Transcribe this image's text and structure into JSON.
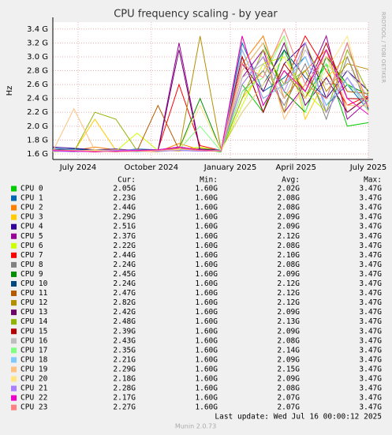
{
  "chart_data": {
    "type": "line",
    "title": "CPU frequency scaling - by year",
    "y_label": "Hz",
    "watermark": "RRDTOOL / TOBI OETIKER",
    "x": [
      0,
      25,
      50,
      75,
      100,
      125,
      150,
      175,
      200,
      225,
      250,
      275,
      300,
      325,
      350,
      375
    ],
    "xlim": [
      0,
      375
    ],
    "xticks": [
      {
        "value": 30,
        "label": "July 2024"
      },
      {
        "value": 117,
        "label": "October 2024"
      },
      {
        "value": 211,
        "label": "January 2025"
      },
      {
        "value": 289,
        "label": "April 2025"
      },
      {
        "value": 375,
        "label": "July 2025"
      }
    ],
    "ylim": [
      1.52,
      3.5
    ],
    "yticks": [
      {
        "value": 1.6,
        "label": "1.6 G"
      },
      {
        "value": 1.8,
        "label": "1.8 G"
      },
      {
        "value": 2.0,
        "label": "2.0 G"
      },
      {
        "value": 2.2,
        "label": "2.2 G"
      },
      {
        "value": 2.4,
        "label": "2.4 G"
      },
      {
        "value": 2.6,
        "label": "2.6 G"
      },
      {
        "value": 2.8,
        "label": "2.8 G"
      },
      {
        "value": 3.0,
        "label": "3.0 G"
      },
      {
        "value": 3.2,
        "label": "3.2 G"
      },
      {
        "value": 3.4,
        "label": "3.4 G"
      }
    ],
    "grid": true,
    "legend_columns": [
      "Cur:",
      "Min:",
      "Avg:",
      "Max:"
    ],
    "series": [
      {
        "name": "CPU 0",
        "color": "#00cc00",
        "values": [
          1.65,
          1.64,
          1.66,
          1.63,
          1.65,
          1.64,
          1.68,
          1.66,
          1.63,
          2.6,
          2.2,
          3.1,
          2.4,
          2.9,
          2.0,
          2.05
        ],
        "stats": [
          "2.05G",
          "1.60G",
          "2.02G",
          "3.47G"
        ]
      },
      {
        "name": "CPU 1",
        "color": "#0066b3",
        "values": [
          1.68,
          1.66,
          1.65,
          1.64,
          1.67,
          1.66,
          1.7,
          1.65,
          1.64,
          3.2,
          2.5,
          2.7,
          3.0,
          2.3,
          2.6,
          2.23
        ],
        "stats": [
          "2.23G",
          "1.60G",
          "2.08G",
          "3.47G"
        ]
      },
      {
        "name": "CPU 2",
        "color": "#ff8000",
        "values": [
          1.64,
          1.65,
          1.7,
          1.66,
          1.64,
          1.63,
          1.75,
          1.66,
          1.65,
          2.9,
          3.3,
          2.4,
          2.8,
          3.1,
          2.2,
          2.44
        ],
        "stats": [
          "2.44G",
          "1.60G",
          "2.08G",
          "3.47G"
        ]
      },
      {
        "name": "CPU 3",
        "color": "#ffcc00",
        "values": [
          1.63,
          1.64,
          2.1,
          1.65,
          1.63,
          1.66,
          1.64,
          1.68,
          1.65,
          2.4,
          2.8,
          3.3,
          2.1,
          2.7,
          3.0,
          2.29
        ],
        "stats": [
          "2.29G",
          "1.60G",
          "2.09G",
          "3.47G"
        ]
      },
      {
        "name": "CPU 4",
        "color": "#330099",
        "values": [
          1.7,
          1.68,
          1.66,
          1.67,
          1.65,
          1.66,
          1.69,
          1.64,
          1.66,
          3.0,
          2.2,
          2.9,
          3.2,
          2.4,
          2.8,
          2.51
        ],
        "stats": [
          "2.51G",
          "1.60G",
          "2.09G",
          "3.47G"
        ]
      },
      {
        "name": "CPU 5",
        "color": "#990099",
        "values": [
          1.66,
          1.65,
          1.64,
          1.66,
          1.64,
          1.65,
          3.2,
          1.66,
          1.64,
          2.7,
          3.1,
          2.2,
          2.6,
          3.3,
          2.1,
          2.37
        ],
        "stats": [
          "2.37G",
          "1.60G",
          "2.12G",
          "3.47G"
        ]
      },
      {
        "name": "CPU 6",
        "color": "#ccff00",
        "values": [
          1.64,
          1.63,
          1.65,
          1.64,
          1.9,
          1.65,
          1.66,
          1.7,
          1.64,
          2.3,
          2.9,
          3.0,
          2.5,
          2.2,
          2.7,
          2.22
        ],
        "stats": [
          "2.22G",
          "1.60G",
          "2.08G",
          "3.47G"
        ]
      },
      {
        "name": "CPU 7",
        "color": "#ff0000",
        "values": [
          1.65,
          1.66,
          1.63,
          1.65,
          1.64,
          1.66,
          2.6,
          1.72,
          1.65,
          3.1,
          2.4,
          2.6,
          3.3,
          2.8,
          2.3,
          2.44
        ],
        "stats": [
          "2.44G",
          "1.60G",
          "2.10G",
          "3.47G"
        ]
      },
      {
        "name": "CPU 8",
        "color": "#808080",
        "values": [
          1.64,
          1.65,
          1.66,
          1.64,
          1.63,
          1.65,
          1.68,
          1.66,
          1.64,
          2.5,
          2.8,
          2.3,
          2.9,
          2.1,
          3.0,
          2.24
        ],
        "stats": [
          "2.24G",
          "1.60G",
          "2.08G",
          "3.47G"
        ]
      },
      {
        "name": "CPU 9",
        "color": "#008f00",
        "values": [
          1.63,
          1.64,
          1.65,
          1.66,
          1.64,
          1.63,
          1.67,
          2.4,
          1.65,
          2.8,
          3.2,
          2.5,
          2.2,
          3.0,
          2.6,
          2.45
        ],
        "stats": [
          "2.45G",
          "1.60G",
          "2.09G",
          "3.47G"
        ]
      },
      {
        "name": "CPU 10",
        "color": "#00487d",
        "values": [
          1.66,
          1.67,
          1.65,
          1.64,
          1.66,
          1.65,
          1.66,
          1.67,
          1.66,
          2.2,
          2.6,
          3.1,
          2.7,
          2.4,
          3.2,
          2.24
        ],
        "stats": [
          "2.24G",
          "1.60G",
          "2.12G",
          "3.47G"
        ]
      },
      {
        "name": "CPU 11",
        "color": "#b35a00",
        "values": [
          1.65,
          1.64,
          1.63,
          1.65,
          1.64,
          2.3,
          1.66,
          1.65,
          1.64,
          3.3,
          2.3,
          2.8,
          2.4,
          3.1,
          2.5,
          2.47
        ],
        "stats": [
          "2.47G",
          "1.60G",
          "2.12G",
          "3.47G"
        ]
      },
      {
        "name": "CPU 12",
        "color": "#b38f00",
        "values": [
          1.64,
          1.65,
          1.64,
          1.66,
          1.65,
          1.64,
          1.65,
          3.3,
          1.66,
          2.6,
          3.0,
          2.2,
          3.2,
          2.5,
          2.9,
          2.82
        ],
        "stats": [
          "2.82G",
          "1.60G",
          "2.12G",
          "3.47G"
        ]
      },
      {
        "name": "CPU 13",
        "color": "#6b006b",
        "values": [
          1.63,
          1.65,
          1.64,
          1.63,
          1.65,
          1.64,
          3.1,
          1.64,
          1.65,
          2.9,
          2.5,
          3.2,
          2.3,
          2.7,
          2.2,
          2.42
        ],
        "stats": [
          "2.42G",
          "1.60G",
          "2.09G",
          "3.47G"
        ]
      },
      {
        "name": "CPU 14",
        "color": "#8fb300",
        "values": [
          1.64,
          1.63,
          2.2,
          2.1,
          1.65,
          1.64,
          1.66,
          1.65,
          1.64,
          2.4,
          3.1,
          2.6,
          2.8,
          2.2,
          3.1,
          2.48
        ],
        "stats": [
          "2.48G",
          "1.60G",
          "2.13G",
          "3.47G"
        ]
      },
      {
        "name": "CPU 15",
        "color": "#b30000",
        "values": [
          1.65,
          1.64,
          1.63,
          1.64,
          1.66,
          1.65,
          1.7,
          1.66,
          1.65,
          3.0,
          2.2,
          2.9,
          2.5,
          3.2,
          2.4,
          2.39
        ],
        "stats": [
          "2.39G",
          "1.60G",
          "2.09G",
          "3.47G"
        ]
      },
      {
        "name": "CPU 16",
        "color": "#bebebe",
        "values": [
          1.64,
          1.65,
          1.64,
          1.63,
          1.64,
          1.66,
          1.65,
          1.64,
          1.66,
          2.7,
          2.9,
          2.4,
          3.1,
          2.6,
          2.8,
          2.43
        ],
        "stats": [
          "2.43G",
          "1.60G",
          "2.08G",
          "3.47G"
        ]
      },
      {
        "name": "CPU 17",
        "color": "#80ff80",
        "values": [
          1.63,
          1.64,
          1.65,
          1.64,
          1.65,
          1.63,
          1.66,
          2.0,
          1.64,
          2.5,
          2.7,
          3.3,
          2.2,
          2.9,
          2.6,
          2.35
        ],
        "stats": [
          "2.35G",
          "1.60G",
          "2.14G",
          "3.47G"
        ]
      },
      {
        "name": "CPU 18",
        "color": "#80c9ff",
        "values": [
          1.65,
          1.66,
          1.64,
          1.65,
          1.63,
          1.64,
          1.66,
          1.65,
          1.64,
          3.1,
          2.4,
          2.6,
          3.0,
          2.3,
          2.7,
          2.21
        ],
        "stats": [
          "2.21G",
          "1.60G",
          "2.09G",
          "3.47G"
        ]
      },
      {
        "name": "CPU 19",
        "color": "#ffc080",
        "values": [
          1.64,
          2.25,
          1.65,
          1.66,
          1.64,
          1.63,
          1.67,
          1.65,
          1.64,
          2.8,
          3.2,
          2.1,
          2.6,
          3.0,
          2.3,
          2.29
        ],
        "stats": [
          "2.29G",
          "1.60G",
          "2.15G",
          "3.47G"
        ]
      },
      {
        "name": "CPU 20",
        "color": "#ffe680",
        "values": [
          1.63,
          1.64,
          1.66,
          1.64,
          1.65,
          1.64,
          1.66,
          2.3,
          1.65,
          2.2,
          2.6,
          3.0,
          2.4,
          2.8,
          3.3,
          2.18
        ],
        "stats": [
          "2.18G",
          "1.60G",
          "2.09G",
          "3.47G"
        ]
      },
      {
        "name": "CPU 21",
        "color": "#aa80ff",
        "values": [
          1.64,
          1.63,
          1.64,
          1.65,
          1.66,
          1.64,
          1.65,
          1.64,
          1.65,
          2.6,
          3.0,
          2.5,
          3.2,
          2.2,
          2.7,
          2.28
        ],
        "stats": [
          "2.28G",
          "1.60G",
          "2.08G",
          "3.47G"
        ]
      },
      {
        "name": "CPU 22",
        "color": "#ee00cc",
        "values": [
          1.65,
          1.64,
          1.63,
          1.64,
          1.65,
          1.66,
          1.7,
          1.66,
          1.64,
          3.3,
          2.3,
          2.8,
          2.5,
          3.1,
          2.4,
          2.17
        ],
        "stats": [
          "2.17G",
          "1.60G",
          "2.07G",
          "3.47G"
        ]
      },
      {
        "name": "CPU 23",
        "color": "#ff8080",
        "values": [
          1.66,
          1.65,
          1.64,
          1.63,
          1.64,
          1.65,
          1.68,
          1.65,
          1.64,
          2.9,
          2.7,
          3.4,
          2.6,
          2.4,
          3.2,
          2.27
        ],
        "stats": [
          "2.27G",
          "1.60G",
          "2.07G",
          "3.47G"
        ]
      }
    ],
    "last_update": "Last update: Wed Jul 16 00:00:12 2025",
    "credit": "Munin 2.0.73"
  }
}
